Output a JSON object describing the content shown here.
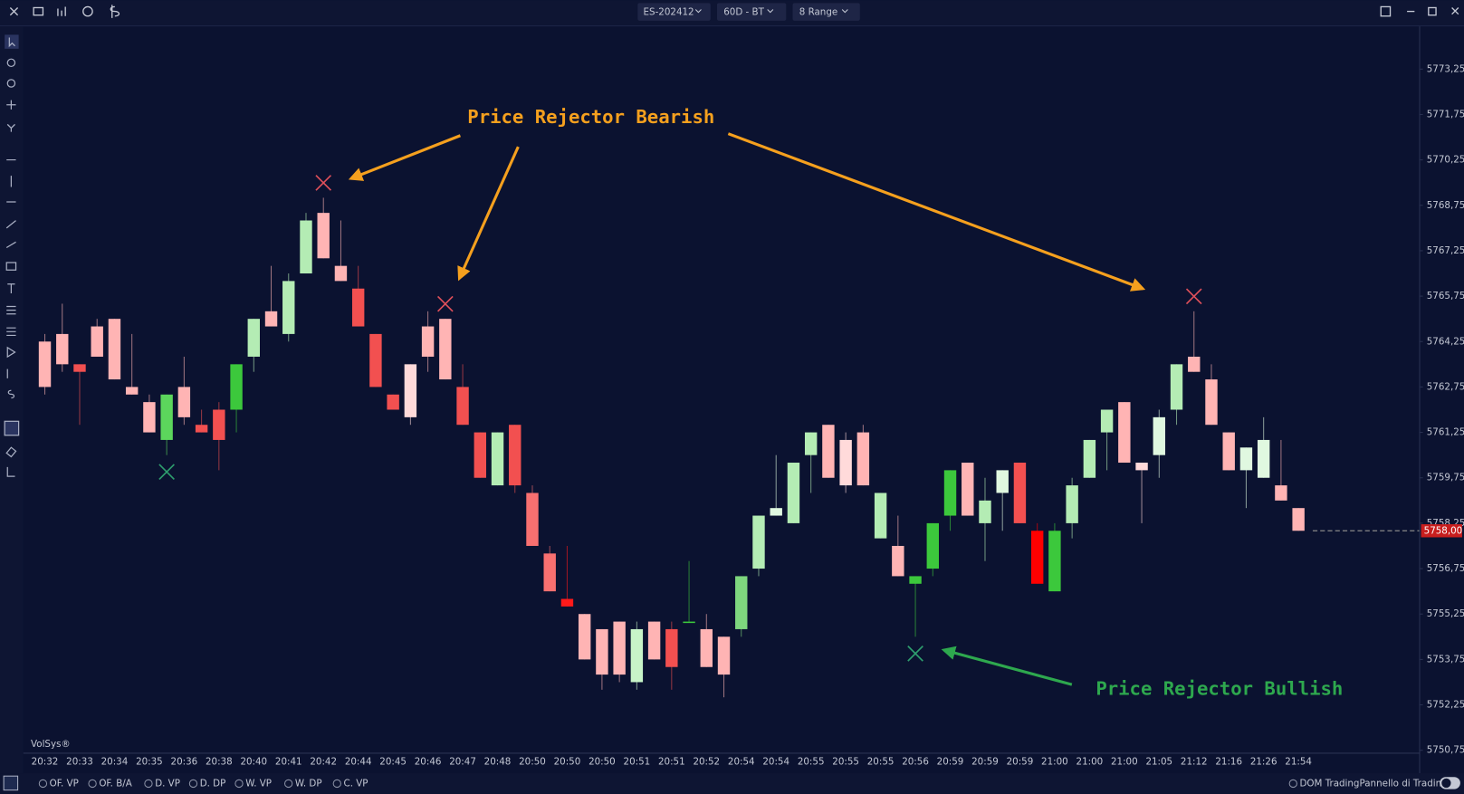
{
  "toolbar": {
    "symbol": "ES-202412",
    "timeframe": "60D - BT",
    "range": "8 Range"
  },
  "chart_data": {
    "type": "candlestick",
    "watermark": "VolSys®",
    "annotations": [
      "Price Rejector Bearish",
      "Price Rejector Bullish"
    ],
    "categories": [
      "20:32",
      null,
      "20:33",
      null,
      "20:34",
      null,
      "20:35",
      null,
      "20:36",
      null,
      "20:38",
      null,
      "20:40",
      null,
      "20:41",
      null,
      "20:42",
      null,
      "20:44",
      null,
      "20:45",
      null,
      "20:46",
      null,
      "20:47",
      null,
      "20:48",
      null,
      "20:50",
      null,
      "20:50",
      null,
      "20:50",
      null,
      "20:51",
      null,
      "20:51",
      null,
      "20:52",
      null,
      "20:54",
      null,
      "20:54",
      null,
      "20:55",
      null,
      "20:55",
      null,
      "20:55",
      null,
      "20:56",
      null,
      "20:59",
      null,
      "20:59",
      null,
      "20:59",
      null,
      "21:00",
      null,
      "21:00",
      null,
      "21:00",
      null,
      "21:05",
      null,
      "21:12",
      null,
      "21:16",
      null,
      "21:26",
      null,
      "21:54"
    ],
    "open": [
      5764.25,
      5764.5,
      5763.5,
      5764.75,
      5765,
      5762.75,
      5762.25,
      5761,
      5762.75,
      5761.5,
      5762,
      5762,
      5763.75,
      5765.25,
      5764.5,
      5766.5,
      5768.5,
      5766.75,
      5766,
      5764.5,
      5762.5,
      5763.5,
      5764.75,
      5765,
      5762.75,
      5761.25,
      5759.5,
      5761.5,
      5759.25,
      5757.25,
      5755.75,
      5755.25,
      5754.75,
      5755,
      5753,
      5755,
      5754.75,
      5755,
      5754.75,
      5754.5,
      5754.75,
      5756.75,
      5758.5,
      5758.25,
      5760.5,
      5761.5,
      5761,
      5761.25,
      5757.75,
      5757.5,
      5756.25,
      5756.75,
      5758.5,
      5760.25,
      5758.25,
      5759.25,
      5760.25,
      5758,
      5756,
      5758.25,
      5759.75,
      5761.25,
      5762.25,
      5760.25,
      5760.5,
      5762,
      5763.75,
      5763,
      5761.25,
      5760,
      5759.75,
      5759.5,
      5758.75
    ],
    "high": [
      5764.5,
      5765.5,
      5763.5,
      5765,
      5765,
      5764.5,
      5762.5,
      5762.5,
      5763.75,
      5762,
      5762.25,
      5763.5,
      5765,
      5766.75,
      5766.5,
      5768.5,
      5769,
      5768.25,
      5766.75,
      5764.5,
      5762.5,
      5763.5,
      5765.25,
      5765,
      5763.5,
      5761.25,
      5761.25,
      5761.5,
      5759.5,
      5757.5,
      5757.5,
      5755.25,
      5754.75,
      5755,
      5755,
      5755,
      5755,
      5757,
      5755.25,
      5754.5,
      5756.5,
      5758.5,
      5760.5,
      5760.25,
      5761.25,
      5761.5,
      5761.25,
      5761.5,
      5759.25,
      5758.5,
      5756.5,
      5758.25,
      5760,
      5760.25,
      5759.75,
      5760,
      5760.25,
      5758.25,
      5758.25,
      5759.75,
      5761,
      5762,
      5762.25,
      5760.25,
      5762,
      5763.5,
      5765.25,
      5763.5,
      5761.25,
      5760.75,
      5761.75,
      5761,
      5758.75
    ],
    "low": [
      5762.5,
      5763.25,
      5761.5,
      5763.75,
      5763,
      5762.5,
      5761.25,
      5760.5,
      5761.5,
      5761.25,
      5760,
      5761.25,
      5763.25,
      5764.75,
      5764.25,
      5766.5,
      5767,
      5766.25,
      5764.75,
      5762.75,
      5762,
      5761.5,
      5763.25,
      5763,
      5761.5,
      5759.75,
      5759.5,
      5759.25,
      5757.5,
      5756,
      5755.5,
      5753.75,
      5752.75,
      5753,
      5752.75,
      5753.75,
      5752.75,
      5755,
      5753.5,
      5752.5,
      5754.5,
      5756.5,
      5758.5,
      5758.25,
      5759.25,
      5759.75,
      5759.25,
      5759.5,
      5757.75,
      5756.5,
      5754.5,
      5756.5,
      5758,
      5758.5,
      5757,
      5758,
      5758.25,
      5756.25,
      5756,
      5757.75,
      5759.75,
      5760,
      5760.25,
      5758.25,
      5759.75,
      5761.5,
      5763.25,
      5761.5,
      5760,
      5758.75,
      5759.75,
      5759,
      5758
    ],
    "close": [
      5762.75,
      5763.5,
      5763.25,
      5763.75,
      5763,
      5762.5,
      5761.25,
      5762.5,
      5761.75,
      5761.25,
      5761,
      5763.5,
      5765,
      5764.75,
      5766.25,
      5768.25,
      5767,
      5766.25,
      5764.75,
      5762.75,
      5762,
      5761.75,
      5763.75,
      5763,
      5761.5,
      5759.75,
      5761.25,
      5759.5,
      5757.5,
      5756,
      5755.5,
      5753.75,
      5753.25,
      5753.25,
      5754.75,
      5753.75,
      5753.5,
      5755,
      5753.5,
      5753.25,
      5756.5,
      5758.5,
      5758.75,
      5760.25,
      5761.25,
      5759.75,
      5759.5,
      5759.5,
      5759.25,
      5756.5,
      5756.5,
      5758.25,
      5760,
      5758.5,
      5759,
      5760,
      5758.25,
      5756.25,
      5758,
      5759.5,
      5761,
      5762,
      5760.25,
      5760,
      5761.75,
      5763.5,
      5763.25,
      5761.5,
      5760,
      5760.75,
      5761,
      5759,
      5758
    ],
    "colors": [
      "#ffb4b4",
      "#ffb4b4",
      "#f25050",
      "#ffb4b4",
      "#ffb4b4",
      "#ffb4b4",
      "#ffb4b4",
      "#5cd65c",
      "#ffb4b4",
      "#f25050",
      "#f25050",
      "#3cc83c",
      "#b4ecb4",
      "#ffb4b4",
      "#b4ecb4",
      "#b4ecb4",
      "#ffb4b4",
      "#ffb4b4",
      "#f25050",
      "#f25050",
      "#f25050",
      "#ffdada",
      "#ffb4b4",
      "#ffb4b4",
      "#f25050",
      "#f25050",
      "#b4ecb4",
      "#f25050",
      "#f87070",
      "#f87070",
      "#ff1a1a",
      "#ffb4b4",
      "#ffb4b4",
      "#ffb4b4",
      "#c8f4c8",
      "#ffb4b4",
      "#f25050",
      "#3cc83c",
      "#ffb4b4",
      "#ffb4b4",
      "#7ed67e",
      "#b4ecb4",
      "#e0f8e0",
      "#b4ecb4",
      "#b4ecb4",
      "#ffb4b4",
      "#ffdada",
      "#ffb4b4",
      "#b4ecb4",
      "#ffb4b4",
      "#3cc83c",
      "#3cc83c",
      "#3cc83c",
      "#ffb4b4",
      "#b4ecb4",
      "#e0f8e0",
      "#f25050",
      "#ff0000",
      "#3cc83c",
      "#b4ecb4",
      "#b4ecb4",
      "#b4ecb4",
      "#ffb4b4",
      "#ffdada",
      "#e0f8e0",
      "#b4ecb4",
      "#ffb4b4",
      "#ffb4b4",
      "#ffb4b4",
      "#e0f8e0",
      "#e0f8e0",
      "#ffb4b4",
      "#ffb4b4"
    ],
    "signals": {
      "bearish": [
        16,
        23,
        66
      ],
      "bullish": [
        7,
        50
      ],
      "bearish_color": "#e0505a",
      "bullish_color": "#2e9e6e"
    },
    "ylim": [
      5750.7,
      5774.6
    ],
    "yticks": [
      {
        "value": 5750.75,
        "label": "5750,75"
      },
      {
        "value": 5752.25,
        "label": "5752,25"
      },
      {
        "value": 5753.75,
        "label": "5753,75"
      },
      {
        "value": 5755.25,
        "label": "5755,25"
      },
      {
        "value": 5756.75,
        "label": "5756,75"
      },
      {
        "value": 5758.25,
        "label": "5758,25"
      },
      {
        "value": 5759.75,
        "label": "5759,75"
      },
      {
        "value": 5761.25,
        "label": "5761,25"
      },
      {
        "value": 5762.75,
        "label": "5762,75"
      },
      {
        "value": 5764.25,
        "label": "5764,25"
      },
      {
        "value": 5765.75,
        "label": "5765,75"
      },
      {
        "value": 5767.25,
        "label": "5767,25"
      },
      {
        "value": 5768.75,
        "label": "5768,75"
      },
      {
        "value": 5770.25,
        "label": "5770,25"
      },
      {
        "value": 5771.75,
        "label": "5771,75"
      },
      {
        "value": 5773.25,
        "label": "5773,25"
      }
    ],
    "last_price": {
      "value": 5758,
      "label": "5758,00"
    }
  },
  "footer": {
    "indicators": [
      "OF. VP",
      "OF. B/A",
      "D. VP",
      "D. DP",
      "W. VP",
      "W. DP",
      "C. VP"
    ],
    "dom": "DOM Trading",
    "panel": "Pannello di Trading"
  }
}
